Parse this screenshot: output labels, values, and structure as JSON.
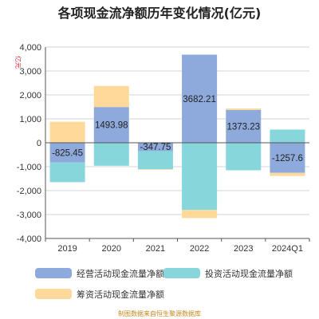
{
  "colors": {
    "operating": "#8eaadc",
    "investing": "#86d6dc",
    "financing": "#ffd99a",
    "grid": "#d4d4d4",
    "axis": "#555555"
  },
  "chart_data": {
    "type": "bar",
    "stacked": true,
    "title": "各项现金流净额历年变化情况(亿元)",
    "ylabel": "亿元",
    "ylim": [
      -4000,
      4000
    ],
    "yticks": [
      4000,
      3000,
      2000,
      1000,
      0,
      -1000,
      -2000,
      -3000,
      -4000
    ],
    "ytick_labels": [
      "4,000",
      "3,000",
      "2,000",
      "1,000",
      "0",
      "-1,000",
      "-2,000",
      "-3,000",
      "-4,000"
    ],
    "categories": [
      "2019",
      "2020",
      "2021",
      "2022",
      "2023",
      "2024Q1"
    ],
    "grid": true,
    "legend_position": "bottom",
    "series": [
      {
        "name": "经营活动现金流量净额",
        "color_key": "operating",
        "values": [
          -825.45,
          1493.98,
          -347.75,
          3682.21,
          1373.23,
          -1257.6
        ],
        "labels": [
          "-825.45",
          "1493.98",
          "-347.75",
          "3682.21",
          "1373.23",
          "-1257.6"
        ]
      },
      {
        "name": "投资活动现金流量净额",
        "color_key": "investing",
        "values": [
          -820,
          -960,
          -760,
          -2810,
          -1150,
          550
        ]
      },
      {
        "name": "筹资活动现金流量净额",
        "color_key": "financing",
        "values": [
          880,
          880,
          -20,
          -340,
          60,
          -130
        ]
      }
    ],
    "source": "制图数据来自恒生聚源数据库"
  }
}
